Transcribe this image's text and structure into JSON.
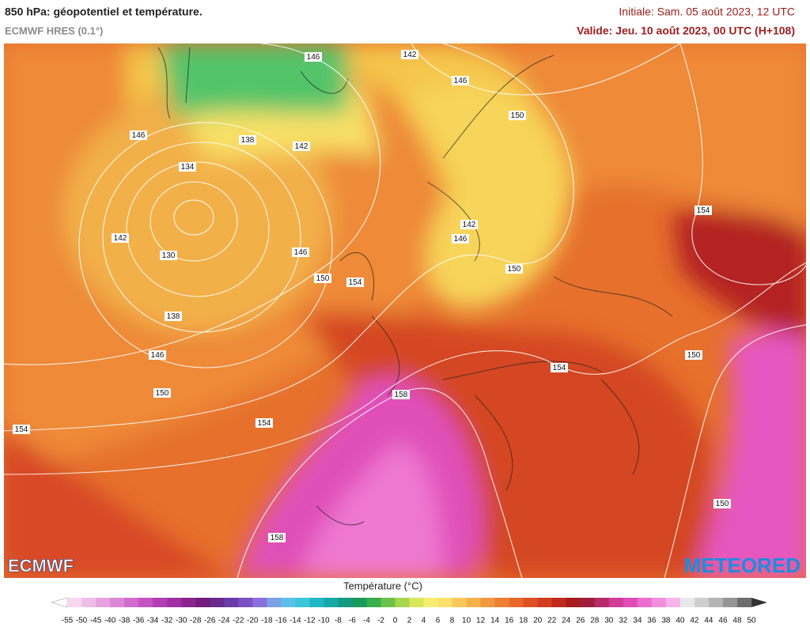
{
  "header": {
    "title": "850 hPa: géopotentiel et température.",
    "model": "ECMWF HRES (0.1°)",
    "initial": "Initiale: Sam. 05 août 2023, 12 UTC",
    "valid": "Valide: Jeu. 10 août 2023, 00 UTC (H+108)"
  },
  "map": {
    "contour_labels": [
      146,
      142,
      146,
      150,
      146,
      138,
      142,
      134,
      154,
      142,
      146,
      142,
      146,
      130,
      150,
      150,
      154,
      138,
      146,
      150,
      154,
      150,
      158,
      154,
      154,
      150,
      158
    ]
  },
  "logos": {
    "left": "ECMWF",
    "right": "METEORED"
  },
  "legend": {
    "title": "Température (°C)",
    "ticks": [
      -55,
      -50,
      -45,
      -40,
      -38,
      -36,
      -34,
      -32,
      -30,
      -28,
      -26,
      -24,
      -22,
      -20,
      -18,
      -16,
      -14,
      -12,
      -10,
      -8,
      -6,
      -4,
      -2,
      0,
      2,
      4,
      6,
      8,
      10,
      12,
      14,
      16,
      18,
      20,
      22,
      24,
      26,
      28,
      30,
      32,
      34,
      36,
      38,
      40,
      42,
      44,
      46,
      48,
      50
    ],
    "colors": [
      "#f5d7f0",
      "#eebde8",
      "#e6a2df",
      "#dc86d6",
      "#d06ccc",
      "#c452c2",
      "#b43db4",
      "#a02fa3",
      "#8a2590",
      "#741c7e",
      "#6a2a8c",
      "#6a3aa6",
      "#7a50c4",
      "#8a70dc",
      "#7aa0e6",
      "#5ec0ea",
      "#3cc6dc",
      "#20b8c4",
      "#14a8a6",
      "#149a80",
      "#1a9a5a",
      "#36ae4a",
      "#6cc24a",
      "#a6d64e",
      "#d8e65a",
      "#f6ee70",
      "#fbe06a",
      "#f8c85a",
      "#f5b04c",
      "#f29840",
      "#ee8036",
      "#e8682c",
      "#de5024",
      "#d23c20",
      "#c02a1c",
      "#a81c1c",
      "#a01e3c",
      "#b82a6a",
      "#d03c96",
      "#e04cb8",
      "#ec6cd0",
      "#f290e0",
      "#f6b4ea",
      "#e8e8e8",
      "#cfcfcf",
      "#b4b4b4",
      "#969696",
      "#6e6e6e"
    ]
  }
}
